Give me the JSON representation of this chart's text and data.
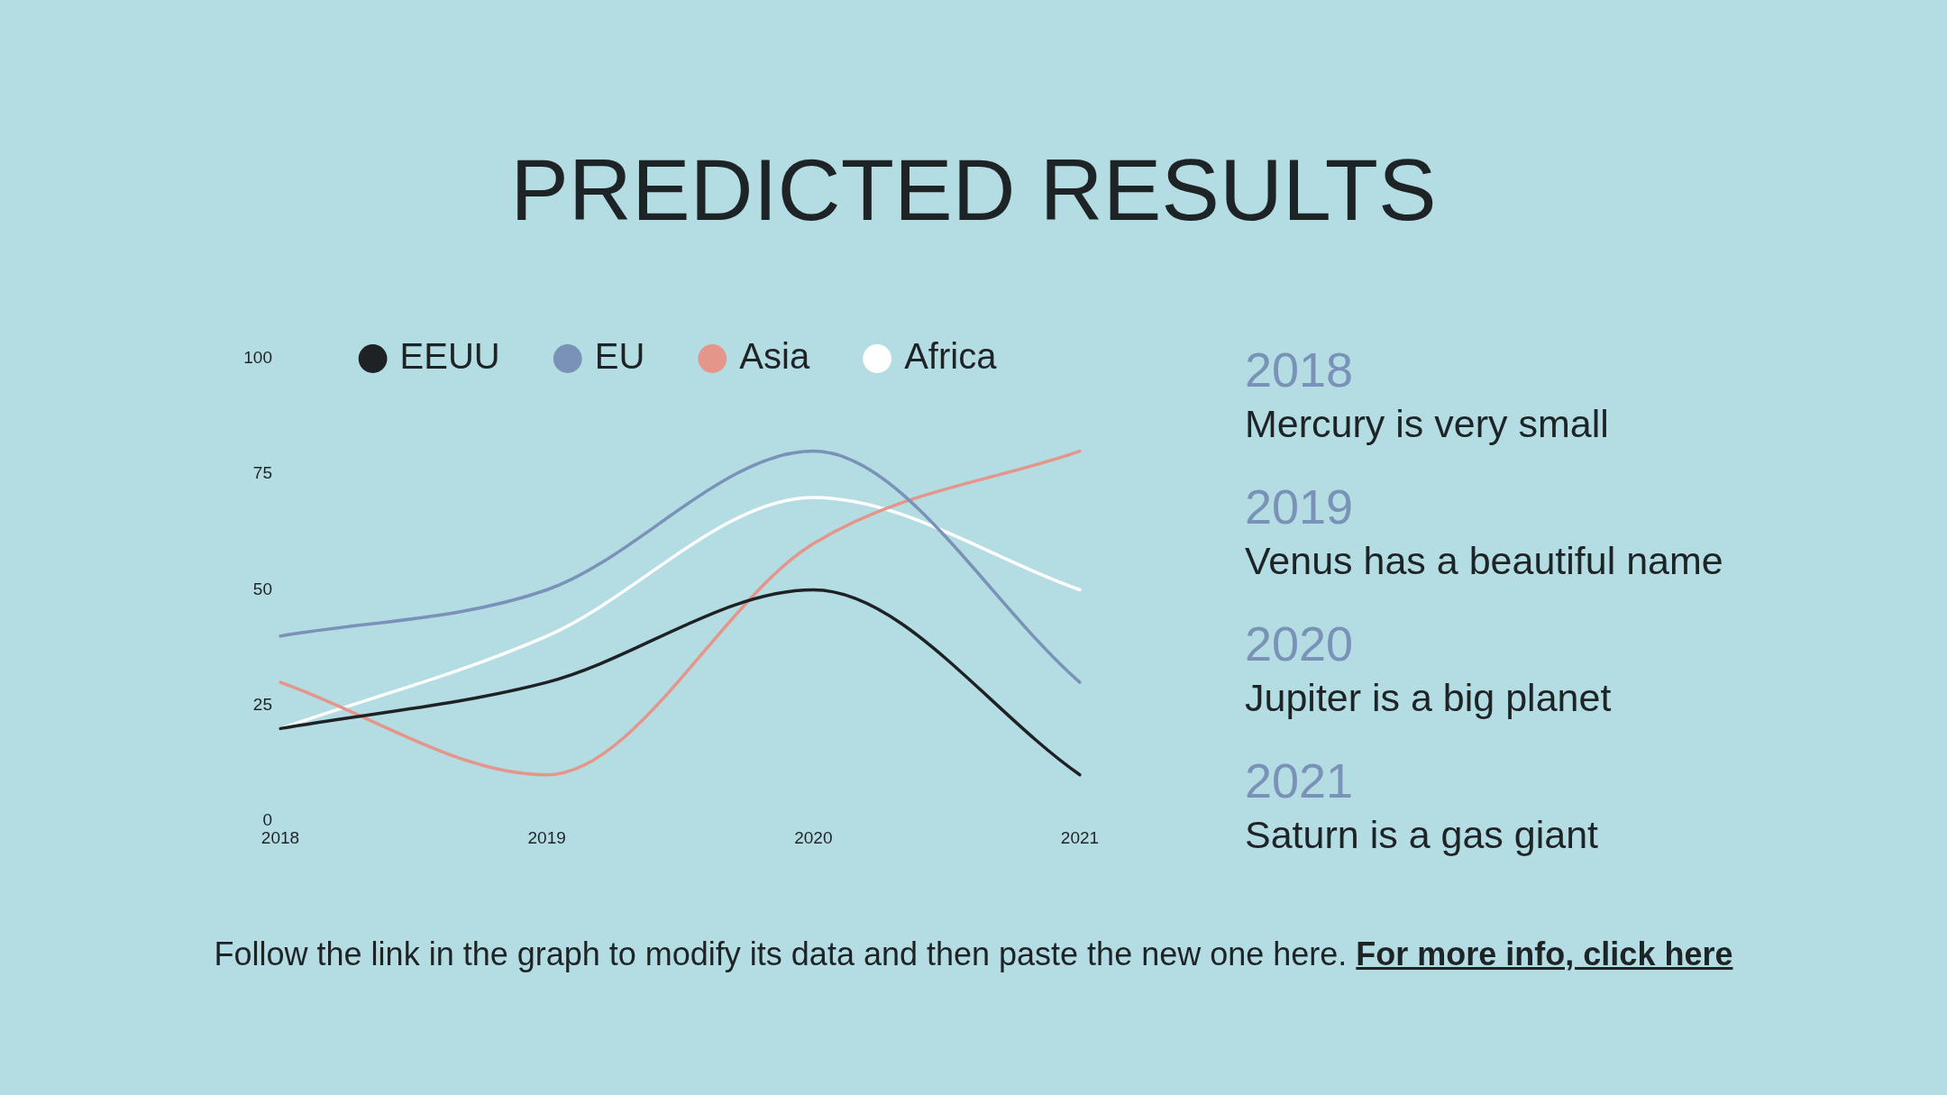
{
  "chart_data": {
    "type": "line",
    "title": "PREDICTED RESULTS",
    "categories": [
      "2018",
      "2019",
      "2020",
      "2021"
    ],
    "series": [
      {
        "name": "EEUU",
        "color": "#1f2225",
        "values": [
          20,
          30,
          50,
          10
        ]
      },
      {
        "name": "EU",
        "color": "#7a91b8",
        "values": [
          40,
          50,
          80,
          30
        ]
      },
      {
        "name": "Asia",
        "color": "#e5958a",
        "values": [
          30,
          10,
          60,
          80
        ]
      },
      {
        "name": "Africa",
        "color": "#ffffff",
        "values": [
          20,
          40,
          70,
          50
        ]
      }
    ],
    "ylim": [
      0,
      100
    ],
    "yticks": [
      0,
      25,
      50,
      75,
      100
    ],
    "grid": false,
    "legend": "top",
    "marker": "none",
    "line_style": "solid",
    "annotations": [
      "2018",
      "Mercury is very small",
      "2019",
      "Venus has a beautiful name",
      "2020",
      "Jupiter is a big planet",
      "2021",
      "Saturn is a gas giant",
      "Follow the link in the graph to modify its data and then paste the new one here.",
      "For more info, click here"
    ]
  }
}
